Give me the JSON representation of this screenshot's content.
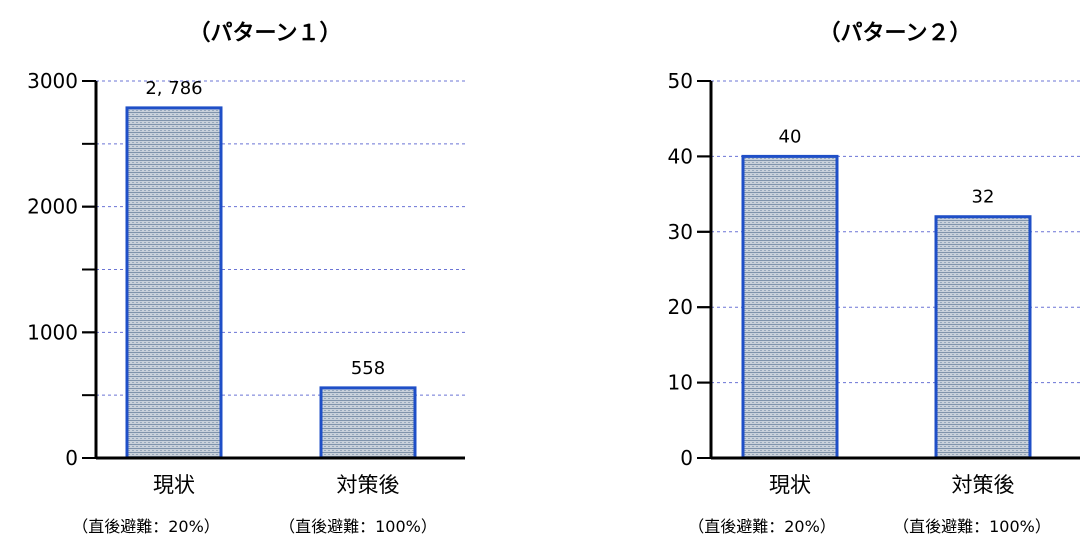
{
  "chart_data": [
    {
      "type": "bar",
      "title": "（パターン１）",
      "categories": [
        "現状",
        "対策後"
      ],
      "category_notes": [
        "（直後避難：20%）",
        "（直後避難：100%）"
      ],
      "values": [
        2786,
        558
      ],
      "value_labels": [
        "2, 786",
        "558"
      ],
      "ylim": [
        0,
        3000
      ],
      "yticks": [
        0,
        1000,
        2000,
        3000
      ],
      "gridlines": [
        500,
        1000,
        1500,
        2000,
        2500,
        3000
      ],
      "grid": true,
      "bar_fill": "#b3bfcc",
      "bar_border": "#1f4fc7",
      "grid_color": "#3a46c8"
    },
    {
      "type": "bar",
      "title": "（パターン２）",
      "categories": [
        "現状",
        "対策後"
      ],
      "category_notes": [
        "（直後避難：20%）",
        "（直後避難：100%）"
      ],
      "values": [
        40,
        32
      ],
      "value_labels": [
        "40",
        "32"
      ],
      "ylim": [
        0,
        50
      ],
      "yticks": [
        0,
        10,
        20,
        30,
        40,
        50
      ],
      "gridlines": [
        10,
        20,
        30,
        40,
        50
      ],
      "grid": true,
      "bar_fill": "#b3bfcc",
      "bar_border": "#1f4fc7",
      "grid_color": "#3a46c8"
    }
  ]
}
